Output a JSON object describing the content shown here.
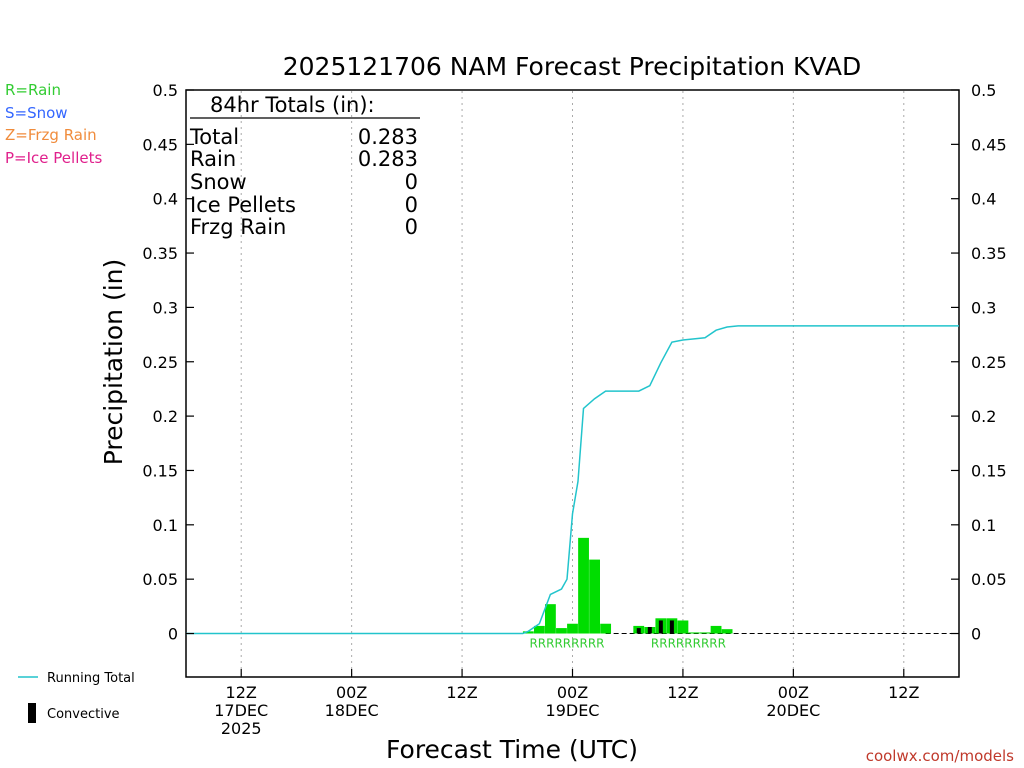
{
  "chart_data": {
    "type": "bar",
    "title": "2025121706 NAM Forecast Precipitation KVAD",
    "xlabel": "Forecast Time (UTC)",
    "ylabel": "Precipitation (in)",
    "ylim": [
      -0.04,
      0.5
    ],
    "yticks": [
      0,
      0.05,
      0.1,
      0.15,
      0.2,
      0.25,
      0.3,
      0.35,
      0.4,
      0.45,
      0.5
    ],
    "ytick_labels": [
      "0",
      "0.05",
      "0.1",
      "0.15",
      "0.2",
      "0.25",
      "0.3",
      "0.35",
      "0.4",
      "0.45",
      "0.5"
    ],
    "xlim_hours": [
      -5,
      65
    ],
    "xticks": [
      {
        "hour": 0,
        "lines": [
          "12Z",
          "17DEC",
          "2025"
        ]
      },
      {
        "hour": 10,
        "lines": [
          "00Z",
          "18DEC"
        ]
      },
      {
        "hour": 20,
        "lines": [
          "12Z"
        ]
      },
      {
        "hour": 30,
        "lines": [
          "00Z",
          "19DEC"
        ]
      },
      {
        "hour": 40,
        "lines": [
          "12Z"
        ]
      },
      {
        "hour": 50,
        "lines": [
          "00Z",
          "20DEC"
        ]
      },
      {
        "hour": 60,
        "lines": [
          "12Z"
        ]
      }
    ],
    "grid": true,
    "series": [
      {
        "name": "Hourly Rain",
        "color": "#00dd00",
        "x": [
          26,
          27,
          28,
          29,
          30,
          31,
          32,
          33,
          36,
          37,
          38,
          39,
          40,
          41,
          42,
          43,
          44
        ],
        "values": [
          0.002,
          0.007,
          0.027,
          0.005,
          0.009,
          0.088,
          0.068,
          0.009,
          0.007,
          0.006,
          0.014,
          0.014,
          0.012,
          0.001,
          0.001,
          0.007,
          0.004
        ]
      },
      {
        "name": "Convective",
        "color": "#000000",
        "x": [
          36,
          37,
          38,
          39,
          40
        ],
        "values": [
          0.005,
          0.006,
          0.012,
          0.012,
          0.0
        ]
      },
      {
        "name": "Running Total",
        "color": "#22c4cc",
        "x": [
          -5,
          25.5,
          26,
          27,
          28,
          29,
          29.5,
          30,
          30.5,
          31,
          32,
          33,
          34,
          35,
          36,
          37,
          38,
          39,
          40,
          41,
          42,
          43,
          44,
          45,
          46,
          47,
          48,
          50,
          55,
          60,
          65
        ],
        "values": [
          0,
          0,
          0.002,
          0.009,
          0.036,
          0.041,
          0.05,
          0.11,
          0.14,
          0.207,
          0.216,
          0.223,
          0.223,
          0.223,
          0.223,
          0.228,
          0.249,
          0.268,
          0.27,
          0.271,
          0.272,
          0.279,
          0.282,
          0.283,
          0.283,
          0.283,
          0.283,
          0.283,
          0.283,
          0.283,
          0.283
        ]
      }
    ],
    "precip_type_labels": [
      {
        "text": "RRRRRRRRR",
        "center_hour": 29.5
      },
      {
        "text": "RRRRRRRRR",
        "center_hour": 40.5
      }
    ],
    "totals_box": {
      "heading": "84hr Totals (in):",
      "rows": [
        {
          "label": "Total",
          "value": "0.283"
        },
        {
          "label": "Rain",
          "value": "0.283"
        },
        {
          "label": "Snow",
          "value": "0"
        },
        {
          "label": "Ice Pellets",
          "value": "0"
        },
        {
          "label": "Frzg Rain",
          "value": "0"
        }
      ]
    },
    "key": [
      {
        "text": "R=Rain",
        "color": "#33cc33"
      },
      {
        "text": "S=Snow",
        "color": "#3366ff"
      },
      {
        "text": "Z=Frzg Rain",
        "color": "#f08c3c"
      },
      {
        "text": "P=Ice Pellets",
        "color": "#e0208c"
      }
    ],
    "legend": [
      {
        "text": "Running Total",
        "kind": "line",
        "color": "#22c4cc"
      },
      {
        "text": "Convective",
        "kind": "bar",
        "color": "#000000"
      }
    ],
    "credit": "coolwx.com/models"
  }
}
